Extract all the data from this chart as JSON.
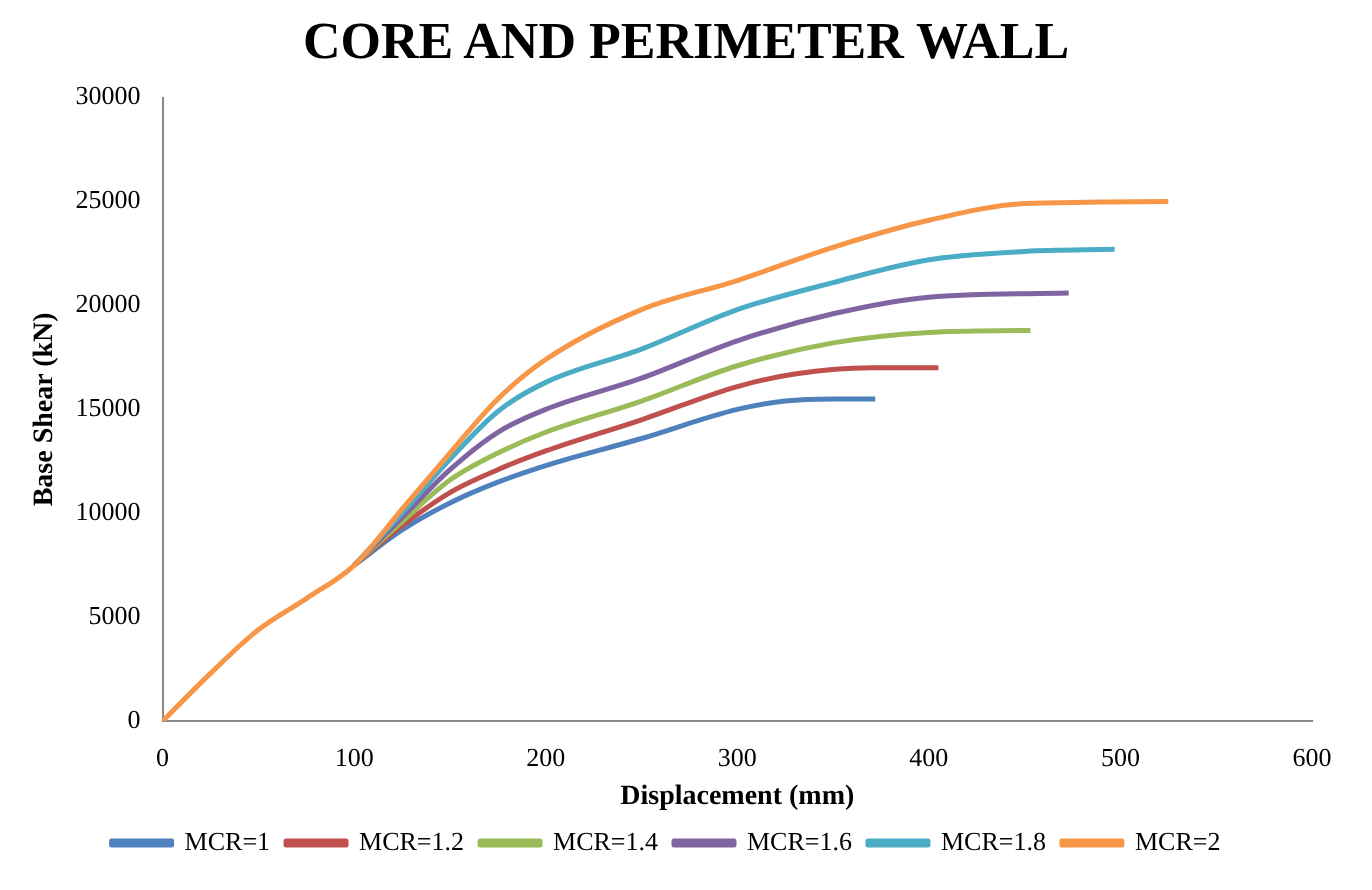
{
  "chart_data": {
    "type": "line",
    "title": "CORE AND PERIMETER WALL",
    "xlabel": "Displacement (mm)",
    "ylabel": "Base Shear (kN)",
    "xlim": [
      0,
      600
    ],
    "xticks": [
      0,
      100,
      200,
      300,
      400,
      500,
      600
    ],
    "ylim": [
      0,
      30000
    ],
    "yticks": [
      0,
      5000,
      10000,
      15000,
      20000,
      25000,
      30000
    ],
    "grid": false,
    "legend": "bottom",
    "marker": "none",
    "line_style": "solid",
    "series": [
      {
        "name": "MCR=1",
        "color": "#4f81bd",
        "x": [
          100,
          125,
          150,
          175,
          200,
          250,
          300,
          325,
          350,
          372
        ],
        "values": [
          7500,
          9200,
          10500,
          11500,
          12300,
          13600,
          15000,
          15400,
          15500,
          15500
        ]
      },
      {
        "name": "MCR=1.2",
        "color": "#c0504d",
        "x": [
          100,
          125,
          150,
          175,
          200,
          250,
          300,
          330,
          370,
          405
        ],
        "values": [
          7500,
          9400,
          11000,
          12100,
          13000,
          14500,
          16100,
          16700,
          17000,
          17000
        ]
      },
      {
        "name": "MCR=1.4",
        "color": "#9bbb59",
        "x": [
          100,
          125,
          150,
          175,
          200,
          250,
          300,
          350,
          400,
          453
        ],
        "values": [
          7500,
          9600,
          11600,
          12900,
          13900,
          15400,
          17100,
          18200,
          18700,
          18800
        ]
      },
      {
        "name": "MCR=1.6",
        "color": "#8064a2",
        "x": [
          100,
          125,
          150,
          175,
          200,
          250,
          300,
          350,
          400,
          473
        ],
        "values": [
          7500,
          9800,
          12100,
          13900,
          15000,
          16500,
          18300,
          19600,
          20400,
          20600
        ]
      },
      {
        "name": "MCR=1.8",
        "color": "#4bacc6",
        "x": [
          100,
          125,
          150,
          175,
          200,
          250,
          300,
          350,
          400,
          450,
          497
        ],
        "values": [
          7500,
          10000,
          12600,
          14900,
          16300,
          17900,
          19800,
          21100,
          22200,
          22600,
          22700
        ]
      },
      {
        "name": "MCR=2",
        "color": "#f79646",
        "x": [
          0,
          25,
          50,
          75,
          100,
          125,
          150,
          175,
          200,
          250,
          300,
          350,
          400,
          450,
          525
        ],
        "values": [
          0,
          2300,
          4400,
          5900,
          7500,
          10200,
          12900,
          15500,
          17400,
          19800,
          21200,
          22800,
          24100,
          24900,
          25000
        ]
      }
    ]
  }
}
